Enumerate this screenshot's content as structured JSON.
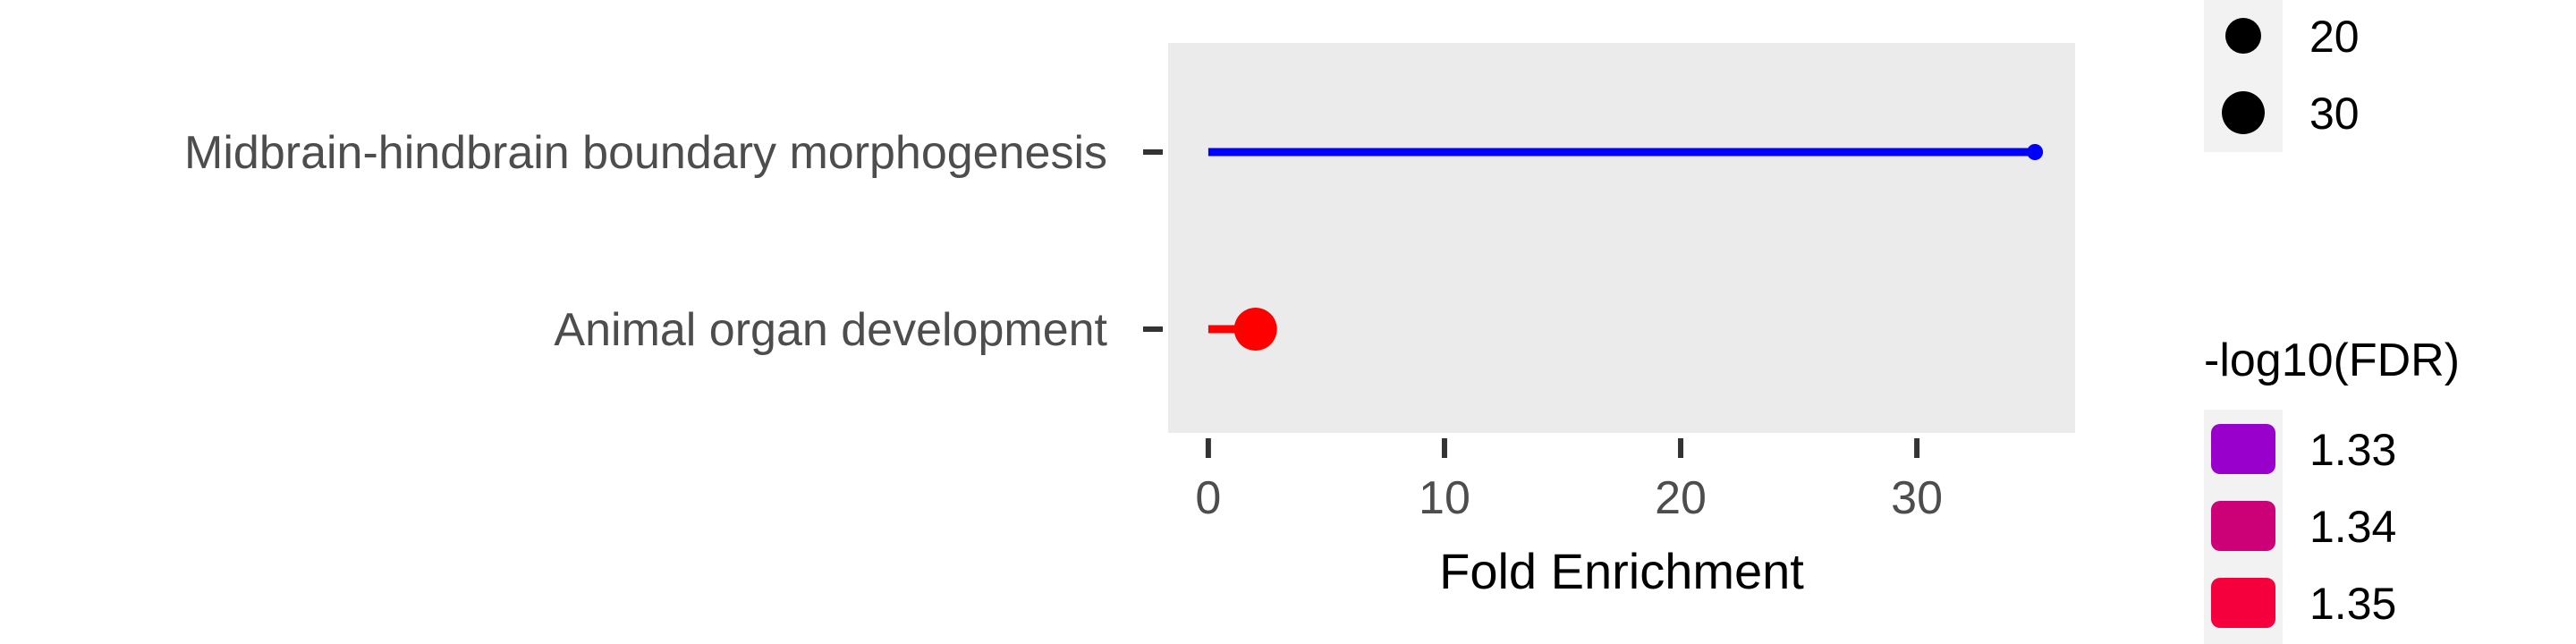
{
  "chart_data": {
    "type": "lollipop",
    "categories": [
      "Midbrain-hindbrain boundary morphogenesis",
      "Animal organ development"
    ],
    "x": [
      35,
      2
    ],
    "fdr_log10": [
      1.33,
      1.35
    ],
    "size_values": [
      10,
      30
    ],
    "point_colors": [
      "#0000ff",
      "#ff0000"
    ],
    "xlabel": "Fold Enrichment",
    "ylabel": "",
    "xlim": [
      -1.7,
      36.7
    ],
    "xticks": [
      0,
      10,
      20,
      30
    ],
    "grid": false,
    "panel_background": "#ebebeb",
    "legend_size": {
      "title": "",
      "items": [
        {
          "label": "20",
          "value": 20
        },
        {
          "label": "30",
          "value": 30
        }
      ]
    },
    "legend_color": {
      "title": "-log10(FDR)",
      "items": [
        {
          "label": "1.33",
          "color": "#9900cc"
        },
        {
          "label": "1.34",
          "color": "#cc0077"
        },
        {
          "label": "1.35",
          "color": "#f5003c"
        }
      ]
    }
  }
}
